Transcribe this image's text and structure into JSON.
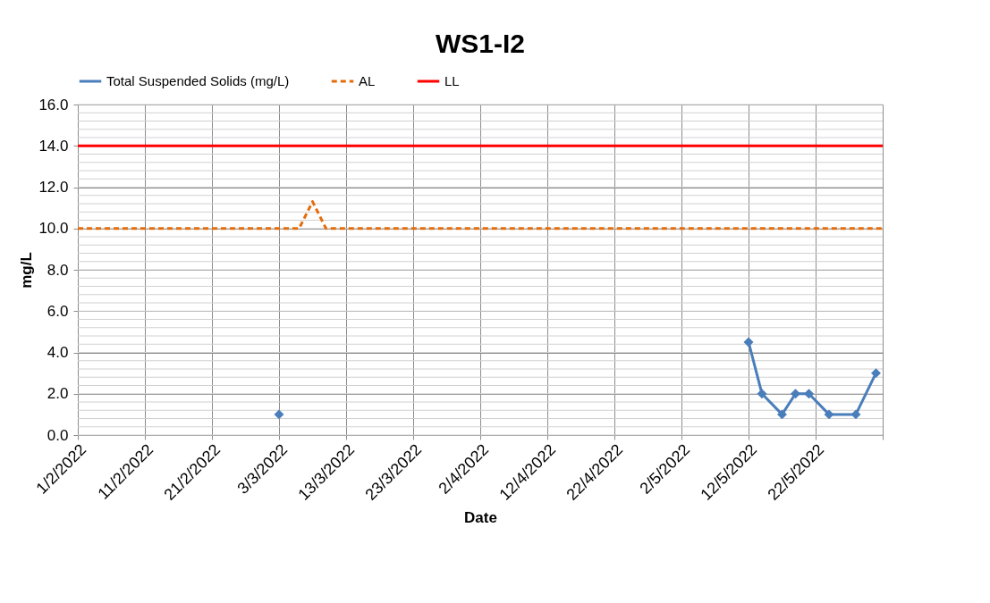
{
  "chart_data": {
    "type": "line",
    "title": "WS1-I2",
    "xlabel": "Date",
    "ylabel": "mg/L",
    "series": [
      {
        "name": "Total Suspended Solids (mg/L)",
        "color": "#4a7ebb",
        "marker": "diamond",
        "line_style": "solid",
        "x": [
          "2022-03-03",
          "2022-04-01",
          "2022-05-12",
          "2022-05-14",
          "2022-05-17",
          "2022-05-19",
          "2022-05-21",
          "2022-05-24",
          "2022-05-28",
          "2022-05-31"
        ],
        "values": [
          1.0,
          null,
          4.5,
          2.0,
          1.0,
          2.0,
          2.0,
          1.0,
          1.0,
          3.0
        ]
      },
      {
        "name": "AL",
        "color": "#e46c0a",
        "marker": "none",
        "line_style": "dashed",
        "x": [
          "2022-02-01",
          "2022-03-06",
          "2022-03-08",
          "2022-03-10",
          "2022-06-01"
        ],
        "values": [
          10.0,
          10.0,
          11.3,
          10.0,
          10.0
        ]
      },
      {
        "name": "LL",
        "color": "#ff0000",
        "marker": "none",
        "line_style": "solid",
        "x": [
          "2022-02-01",
          "2022-06-01"
        ],
        "values": [
          14.0,
          14.0
        ]
      }
    ],
    "xlim": [
      "2022-02-01",
      "2022-06-01"
    ],
    "xticks": [
      {
        "value": "2022-02-01",
        "label": "1/2/2022"
      },
      {
        "value": "2022-02-11",
        "label": "11/2/2022"
      },
      {
        "value": "2022-02-21",
        "label": "21/2/2022"
      },
      {
        "value": "2022-03-03",
        "label": "3/3/2022"
      },
      {
        "value": "2022-03-13",
        "label": "13/3/2022"
      },
      {
        "value": "2022-03-23",
        "label": "23/3/2022"
      },
      {
        "value": "2022-04-02",
        "label": "2/4/2022"
      },
      {
        "value": "2022-04-12",
        "label": "12/4/2022"
      },
      {
        "value": "2022-04-22",
        "label": "22/4/2022"
      },
      {
        "value": "2022-05-02",
        "label": "2/5/2022"
      },
      {
        "value": "2022-05-12",
        "label": "12/5/2022"
      },
      {
        "value": "2022-05-22",
        "label": "22/5/2022"
      },
      {
        "value": "2022-06-01",
        "label": null
      }
    ],
    "ylim": [
      0,
      16
    ],
    "yticks": [
      {
        "value": 0,
        "label": "0.0"
      },
      {
        "value": 2,
        "label": "2.0"
      },
      {
        "value": 4,
        "label": "4.0"
      },
      {
        "value": 6,
        "label": "6.0"
      },
      {
        "value": 8,
        "label": "8.0"
      },
      {
        "value": 10,
        "label": "10.0"
      },
      {
        "value": 12,
        "label": "12.0"
      },
      {
        "value": 14,
        "label": "14.0"
      },
      {
        "value": 16,
        "label": "16.0"
      }
    ],
    "grid": true,
    "legend": "top"
  }
}
